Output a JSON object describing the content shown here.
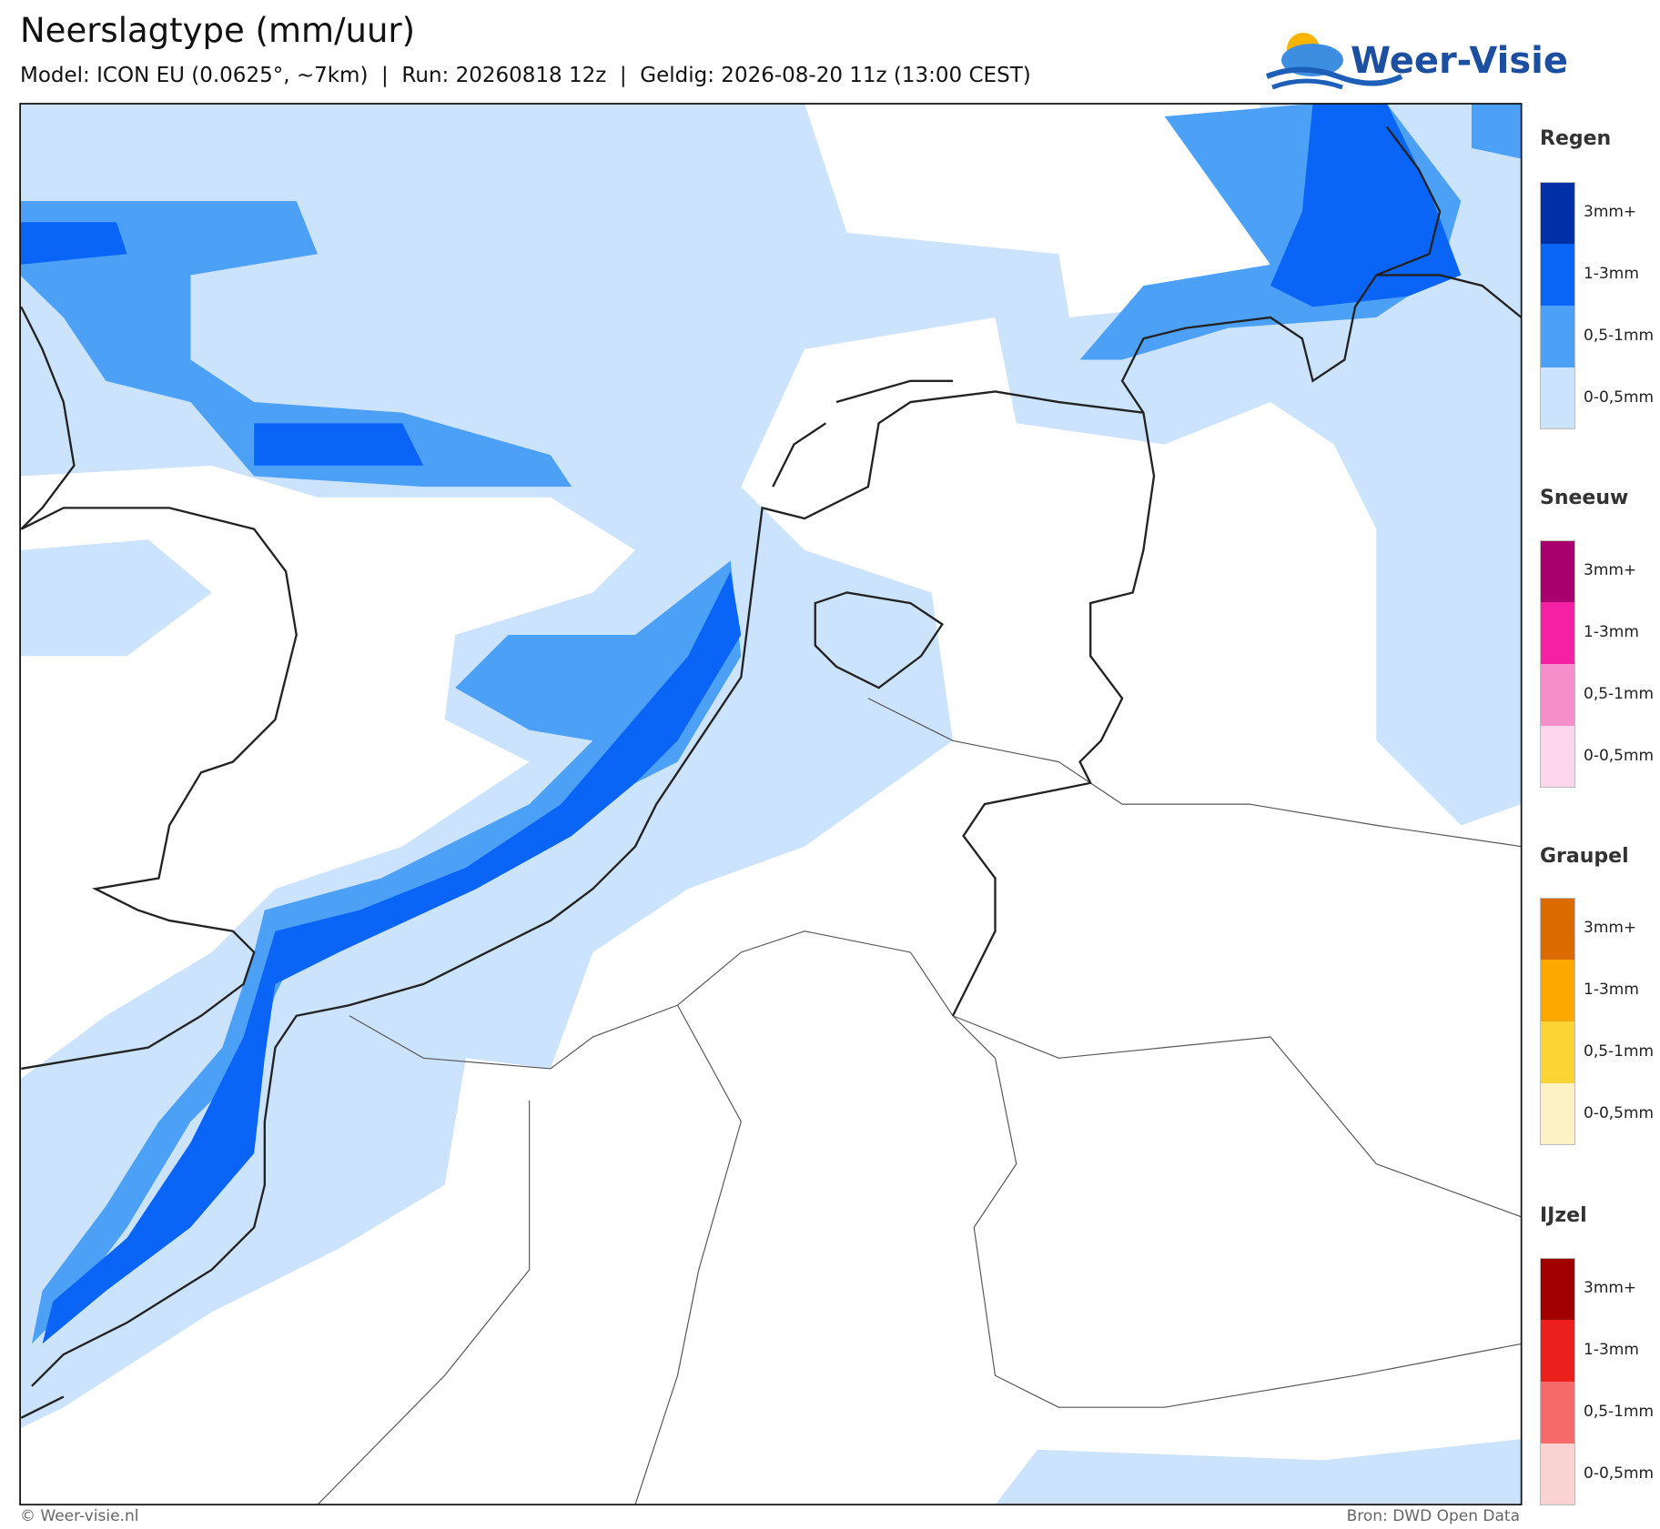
{
  "header": {
    "title": "Neerslagtype (mm/uur)",
    "subtitle": "Model: ICON EU (0.0625°, ~7km)  |  Run: 20260818 12z  |  Geldig: 2026-08-20 11z (13:00 CEST)",
    "logo": "Weer-Visie"
  },
  "legend": [
    {
      "title": "Regen",
      "items": [
        {
          "label": "3mm+",
          "color": "#0030a8"
        },
        {
          "label": "1-3mm",
          "color": "#0a64f5"
        },
        {
          "label": "0,5-1mm",
          "color": "#4ca1f7"
        },
        {
          "label": "0-0,5mm",
          "color": "#cce3fd"
        }
      ]
    },
    {
      "title": "Sneeuw",
      "items": [
        {
          "label": "3mm+",
          "color": "#a8006e"
        },
        {
          "label": "1-3mm",
          "color": "#f520a4"
        },
        {
          "label": "0,5-1mm",
          "color": "#f78ecb"
        },
        {
          "label": "0-0,5mm",
          "color": "#fcd6ec"
        }
      ]
    },
    {
      "title": "Graupel",
      "items": [
        {
          "label": "3mm+",
          "color": "#db6a00"
        },
        {
          "label": "1-3mm",
          "color": "#fca800"
        },
        {
          "label": "0,5-1mm",
          "color": "#fcd535"
        },
        {
          "label": "0-0,5mm",
          "color": "#fdf2c6"
        }
      ]
    },
    {
      "title": "IJzel",
      "items": [
        {
          "label": "3mm+",
          "color": "#a00000"
        },
        {
          "label": "1-3mm",
          "color": "#ec1f1f"
        },
        {
          "label": "0,5-1mm",
          "color": "#f76a6a"
        },
        {
          "label": "0-0,5mm",
          "color": "#fcd3d3"
        }
      ]
    }
  ],
  "footer": {
    "left": "© Weer-visie.nl",
    "right": "Bron: DWD Open Data"
  }
}
